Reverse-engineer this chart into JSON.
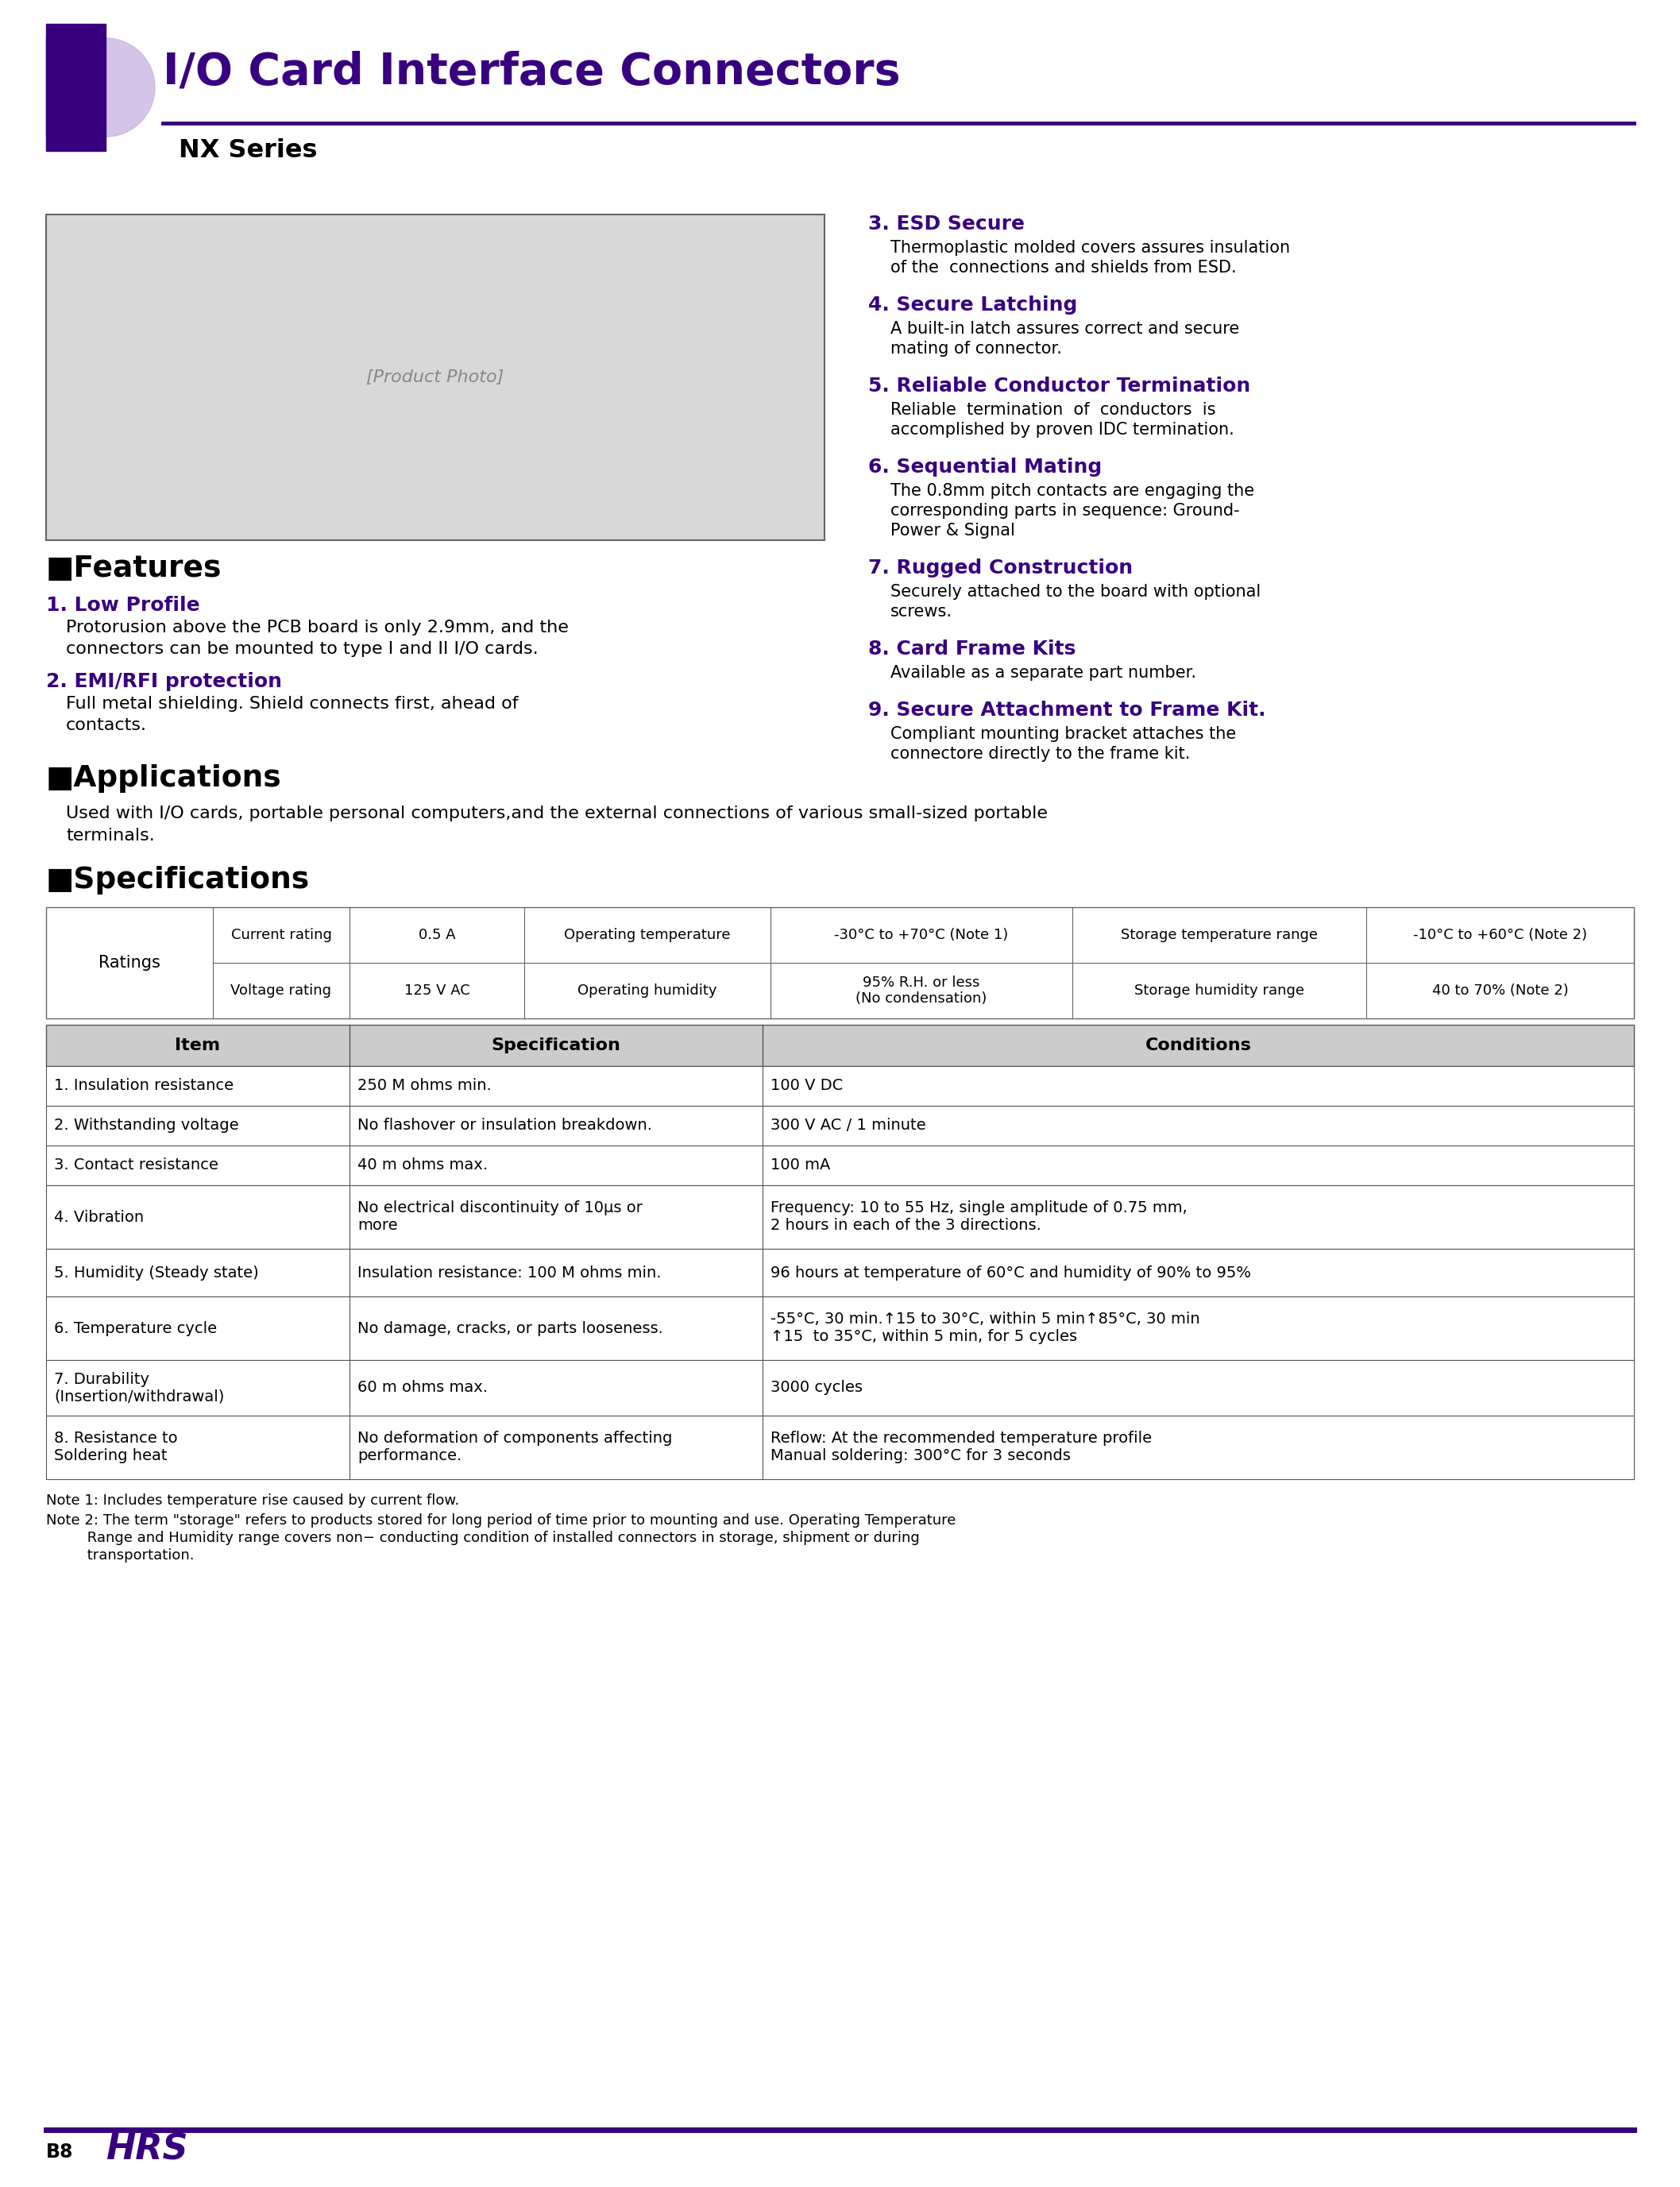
{
  "title": "I/O Card Interface Connectors",
  "subtitle": "NX Series",
  "purple_dark": "#380080",
  "purple_light": "#c8b0e0",
  "black": "#000000",
  "white": "#ffffff",
  "features_title": "Features",
  "features": [
    {
      "num": "1. Low Profile",
      "text": "Protorusion above the PCB board is only 2.9mm, and the\nconnectors can be mounted to type I and II I/O cards."
    },
    {
      "num": "2. EMI/RFI protection",
      "text": "Full metal shielding. Shield connects first, ahead of\ncontacts."
    }
  ],
  "features_right": [
    {
      "num": "3. ESD Secure",
      "text": "Thermoplastic molded covers assures insulation\nof the  connections and shields from ESD."
    },
    {
      "num": "4. Secure Latching",
      "text": "A built-in latch assures correct and secure\nmating of connector."
    },
    {
      "num": "5. Reliable Conductor Termination",
      "text": "Reliable  termination  of  conductors  is\naccomplished by proven IDC termination."
    },
    {
      "num": "6. Sequential Mating",
      "text": "The 0.8mm pitch contacts are engaging the\ncorresponding parts in sequence: Ground-\nPower & Signal"
    },
    {
      "num": "7. Rugged Construction",
      "text": "Securely attached to the board with optional\nscrews."
    },
    {
      "num": "8. Card Frame Kits",
      "text": "Available as a separate part number."
    },
    {
      "num": "9. Secure Attachment to Frame Kit.",
      "text": "Compliant mounting bracket attaches the\nconnectore directly to the frame kit."
    }
  ],
  "applications_title": "Applications",
  "applications_text": "Used with I/O cards, portable personal computers,and the external connections of various small-sized portable\nterminals.",
  "specifications_title": "Specifications",
  "ratings_row1": [
    "Current rating",
    "0.5 A",
    "Operating temperature",
    "-30°C to +70°C (Note 1)",
    "Storage temperature range",
    "-10°C to +60°C (Note 2)"
  ],
  "ratings_row2": [
    "Voltage rating",
    "125 V AC",
    "Operating humidity",
    "95% R.H. or less\n(No condensation)",
    "Storage humidity range",
    "40 to 70% (Note 2)"
  ],
  "spec_headers": [
    "Item",
    "Specification",
    "Conditions"
  ],
  "spec_rows": [
    [
      "1. Insulation resistance",
      "250 M ohms min.",
      "100 V DC"
    ],
    [
      "2. Withstanding voltage",
      "No flashover or insulation breakdown.",
      "300 V AC / 1 minute"
    ],
    [
      "3. Contact resistance",
      "40 m ohms max.",
      "100 mA"
    ],
    [
      "4. Vibration",
      "No electrical discontinuity of 10μs or\nmore",
      "Frequency: 10 to 55 Hz, single amplitude of 0.75 mm,\n2 hours in each of the 3 directions."
    ],
    [
      "5. Humidity (Steady state)",
      "Insulation resistance: 100 M ohms min.",
      "96 hours at temperature of 60°C and humidity of 90% to 95%"
    ],
    [
      "6. Temperature cycle",
      "No damage, cracks, or parts looseness.",
      "-55°C, 30 min.↑15 to 30°C, within 5 min↑85°C, 30 min\n↑15  to 35°C, within 5 min, for 5 cycles"
    ],
    [
      "7. Durability\n(Insertion/withdrawal)",
      "60 m ohms max.",
      "3000 cycles"
    ],
    [
      "8. Resistance to\nSoldering heat",
      "No deformation of components affecting\nperformance.",
      "Reflow: At the recommended temperature profile\nManual soldering: 300°C for 3 seconds"
    ]
  ],
  "spec_row_heights": [
    50,
    50,
    50,
    80,
    60,
    80,
    70,
    80
  ],
  "note1": "Note 1: Includes temperature rise caused by current flow.",
  "note2": "Note 2: The term \"storage\" refers to products stored for long period of time prior to mounting and use. Operating Temperature\n         Range and Humidity range covers non− conducting condition of installed connectors in storage, shipment or during\n         transportation.",
  "page_num": "B8"
}
